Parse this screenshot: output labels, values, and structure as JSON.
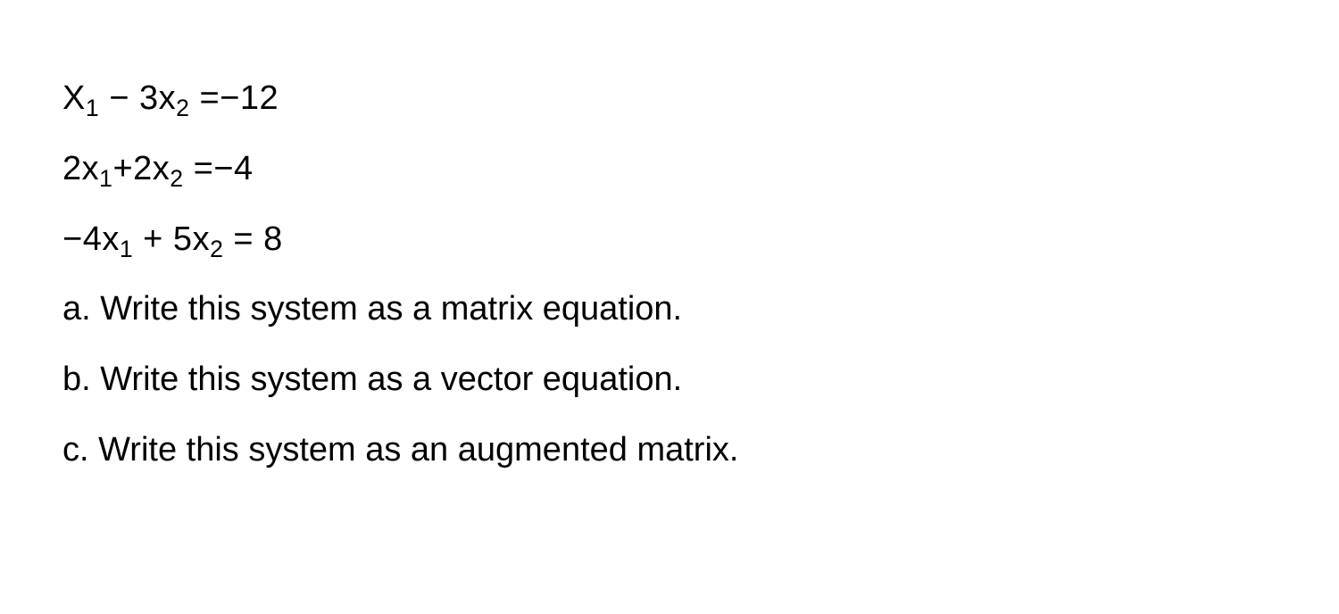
{
  "equations": {
    "eq1": {
      "var1_cap": "X",
      "sub1": "1",
      "op1": " − 3x",
      "sub2": "2",
      "eq_rhs": " =−12"
    },
    "eq2": {
      "lhs1": "2x",
      "sub1": "1",
      "mid": "+2x",
      "sub2": "2",
      "eq_rhs": " =−4"
    },
    "eq3": {
      "lhs1": "−4x",
      "sub1": "1",
      "mid": " + 5x",
      "sub2": "2",
      "eq_rhs": " = 8"
    }
  },
  "questions": {
    "a": "a. Write this system as a matrix equation.",
    "b": "b. Write this system as a vector equation.",
    "c": "c. Write this system as an augmented matrix."
  },
  "styling": {
    "font_size_pt": 38,
    "text_color": "#000000",
    "background_color": "#ffffff",
    "font_family": "Arial, Helvetica, sans-serif",
    "line_spacing": 1.6
  }
}
